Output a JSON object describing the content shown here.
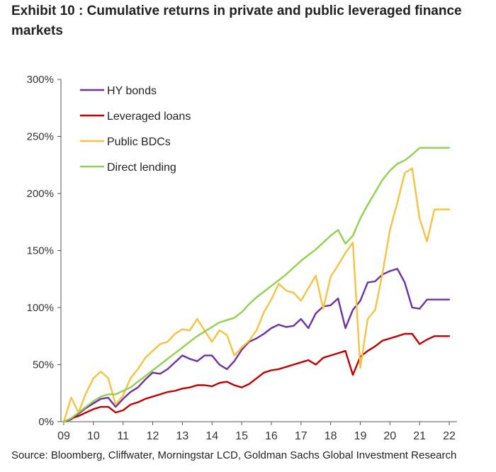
{
  "title": "Exhibit 10 : Cumulative returns in private and public leveraged finance markets",
  "source": "Source: Bloomberg, Cliffwater, Morningstar LCD, Goldman Sachs Global Investment Research",
  "chart_data": {
    "type": "line",
    "xlim": [
      2009,
      2022.2
    ],
    "ylim": [
      0,
      300
    ],
    "y_ticks": [
      0,
      50,
      100,
      150,
      200,
      250,
      300
    ],
    "y_tick_labels": [
      "0%",
      "50%",
      "100%",
      "150%",
      "200%",
      "250%",
      "300%"
    ],
    "x_ticks": [
      2009,
      2010,
      2011,
      2012,
      2013,
      2014,
      2015,
      2016,
      2017,
      2018,
      2019,
      2020,
      2021,
      2022
    ],
    "x_tick_labels": [
      "09",
      "10",
      "11",
      "12",
      "13",
      "14",
      "15",
      "16",
      "17",
      "18",
      "19",
      "20",
      "21",
      "22"
    ],
    "grid": false,
    "legend_position": "top-left",
    "x": [
      2009.0,
      2009.25,
      2009.5,
      2009.75,
      2010.0,
      2010.25,
      2010.5,
      2010.75,
      2011.0,
      2011.25,
      2011.5,
      2011.75,
      2012.0,
      2012.25,
      2012.5,
      2012.75,
      2013.0,
      2013.25,
      2013.5,
      2013.75,
      2014.0,
      2014.25,
      2014.5,
      2014.75,
      2015.0,
      2015.25,
      2015.5,
      2015.75,
      2016.0,
      2016.25,
      2016.5,
      2016.75,
      2017.0,
      2017.25,
      2017.5,
      2017.75,
      2018.0,
      2018.25,
      2018.5,
      2018.75,
      2019.0,
      2019.25,
      2019.5,
      2019.75,
      2020.0,
      2020.25,
      2020.5,
      2020.75,
      2021.0,
      2021.25,
      2021.5,
      2021.75,
      2022.0
    ],
    "series": [
      {
        "name": "HY bonds",
        "color": "#7030a0",
        "values": [
          0,
          2,
          7,
          12,
          16,
          20,
          21,
          13,
          20,
          26,
          30,
          37,
          43,
          42,
          46,
          52,
          58,
          55,
          53,
          58,
          58,
          50,
          46,
          53,
          63,
          70,
          73,
          77,
          82,
          85,
          83,
          84,
          90,
          82,
          95,
          101,
          102,
          108,
          82,
          98,
          106,
          122,
          123,
          129,
          132,
          134,
          122,
          100,
          99,
          107,
          107,
          107,
          107
        ]
      },
      {
        "name": "Leveraged loans",
        "color": "#c00000",
        "values": [
          0,
          3,
          5,
          8,
          11,
          13,
          13,
          8,
          10,
          15,
          17,
          20,
          22,
          24,
          26,
          27,
          29,
          30,
          32,
          32,
          31,
          34,
          35,
          32,
          30,
          33,
          38,
          43,
          45,
          46,
          48,
          50,
          52,
          54,
          50,
          56,
          58,
          60,
          62,
          41,
          57,
          62,
          66,
          71,
          73,
          75,
          77,
          77,
          68,
          72,
          75,
          75,
          75
        ]
      },
      {
        "name": "Public BDCs",
        "color": "#f5c242",
        "values": [
          0,
          21,
          8,
          25,
          38,
          44,
          38,
          15,
          23,
          38,
          46,
          56,
          62,
          68,
          70,
          77,
          81,
          80,
          90,
          80,
          70,
          80,
          76,
          58,
          65,
          71,
          80,
          96,
          107,
          121,
          115,
          113,
          106,
          117,
          128,
          99,
          127,
          137,
          148,
          157,
          47,
          90,
          98,
          130,
          168,
          192,
          218,
          222,
          178,
          158,
          186,
          186,
          186
        ]
      },
      {
        "name": "Direct lending",
        "color": "#92d050",
        "values": [
          0,
          3,
          8,
          13,
          18,
          22,
          24,
          24,
          27,
          30,
          35,
          40,
          45,
          50,
          55,
          60,
          65,
          70,
          75,
          79,
          83,
          87,
          89,
          91,
          96,
          103,
          109,
          114,
          119,
          124,
          129,
          135,
          141,
          146,
          151,
          157,
          163,
          168,
          156,
          163,
          178,
          190,
          201,
          212,
          220,
          226,
          229,
          234,
          240,
          240,
          240,
          240,
          240
        ]
      }
    ]
  }
}
